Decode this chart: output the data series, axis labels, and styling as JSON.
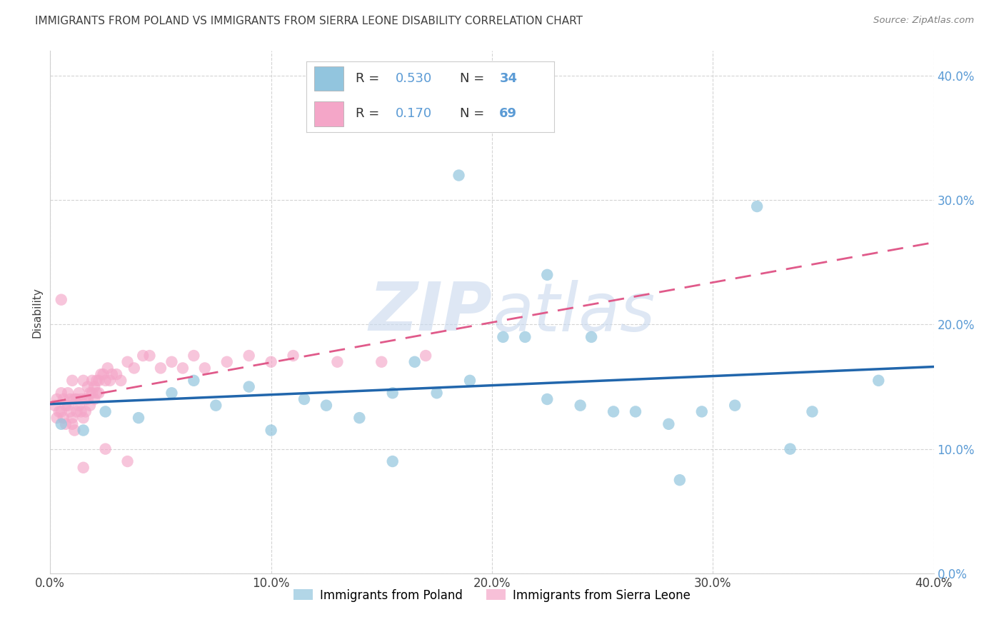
{
  "title": "IMMIGRANTS FROM POLAND VS IMMIGRANTS FROM SIERRA LEONE DISABILITY CORRELATION CHART",
  "source": "Source: ZipAtlas.com",
  "ylabel": "Disability",
  "xlim": [
    0.0,
    0.4
  ],
  "ylim": [
    0.0,
    0.42
  ],
  "yticks": [
    0.0,
    0.1,
    0.2,
    0.3,
    0.4
  ],
  "xticks": [
    0.0,
    0.1,
    0.2,
    0.3,
    0.4
  ],
  "poland_color": "#92c5de",
  "sierra_leone_color": "#f4a6c8",
  "poland_line_color": "#2166ac",
  "sierra_line_color": "#e05a8a",
  "poland_R": 0.53,
  "poland_N": 34,
  "sierra_leone_R": 0.17,
  "sierra_leone_N": 69,
  "legend_label_poland": "Immigrants from Poland",
  "legend_label_sierra": "Immigrants from Sierra Leone",
  "poland_x": [
    0.005,
    0.015,
    0.025,
    0.04,
    0.055,
    0.065,
    0.075,
    0.09,
    0.1,
    0.115,
    0.125,
    0.14,
    0.155,
    0.165,
    0.175,
    0.19,
    0.205,
    0.215,
    0.225,
    0.24,
    0.255,
    0.265,
    0.28,
    0.295,
    0.31,
    0.32,
    0.335,
    0.345,
    0.225,
    0.185,
    0.155,
    0.245,
    0.285,
    0.375
  ],
  "poland_y": [
    0.12,
    0.115,
    0.13,
    0.125,
    0.145,
    0.155,
    0.135,
    0.15,
    0.115,
    0.14,
    0.135,
    0.125,
    0.145,
    0.17,
    0.145,
    0.155,
    0.19,
    0.19,
    0.14,
    0.135,
    0.13,
    0.13,
    0.12,
    0.13,
    0.135,
    0.295,
    0.1,
    0.13,
    0.24,
    0.32,
    0.09,
    0.19,
    0.075,
    0.155
  ],
  "sierra_x": [
    0.002,
    0.003,
    0.003,
    0.004,
    0.005,
    0.005,
    0.006,
    0.006,
    0.007,
    0.007,
    0.008,
    0.008,
    0.009,
    0.009,
    0.01,
    0.01,
    0.011,
    0.011,
    0.012,
    0.012,
    0.013,
    0.013,
    0.014,
    0.014,
    0.015,
    0.015,
    0.016,
    0.016,
    0.017,
    0.017,
    0.018,
    0.018,
    0.019,
    0.019,
    0.02,
    0.02,
    0.021,
    0.021,
    0.022,
    0.022,
    0.023,
    0.024,
    0.025,
    0.026,
    0.027,
    0.028,
    0.03,
    0.032,
    0.035,
    0.038,
    0.042,
    0.045,
    0.05,
    0.055,
    0.06,
    0.065,
    0.07,
    0.08,
    0.09,
    0.1,
    0.11,
    0.13,
    0.15,
    0.17,
    0.005,
    0.01,
    0.015,
    0.025,
    0.035
  ],
  "sierra_y": [
    0.135,
    0.14,
    0.125,
    0.13,
    0.145,
    0.13,
    0.14,
    0.125,
    0.135,
    0.12,
    0.135,
    0.145,
    0.14,
    0.13,
    0.125,
    0.12,
    0.115,
    0.14,
    0.13,
    0.14,
    0.145,
    0.135,
    0.13,
    0.14,
    0.125,
    0.155,
    0.14,
    0.13,
    0.14,
    0.15,
    0.145,
    0.135,
    0.145,
    0.155,
    0.14,
    0.15,
    0.155,
    0.145,
    0.155,
    0.145,
    0.16,
    0.16,
    0.155,
    0.165,
    0.155,
    0.16,
    0.16,
    0.155,
    0.17,
    0.165,
    0.175,
    0.175,
    0.165,
    0.17,
    0.165,
    0.175,
    0.165,
    0.17,
    0.175,
    0.17,
    0.175,
    0.17,
    0.17,
    0.175,
    0.22,
    0.155,
    0.085,
    0.1,
    0.09
  ],
  "watermark_zip": "ZIP",
  "watermark_atlas": "atlas",
  "background_color": "#ffffff",
  "grid_color": "#d0d0d0",
  "axis_tick_color_y": "#5b9bd5",
  "axis_tick_color_x": "#404040",
  "title_color": "#404040",
  "source_color": "#808080"
}
